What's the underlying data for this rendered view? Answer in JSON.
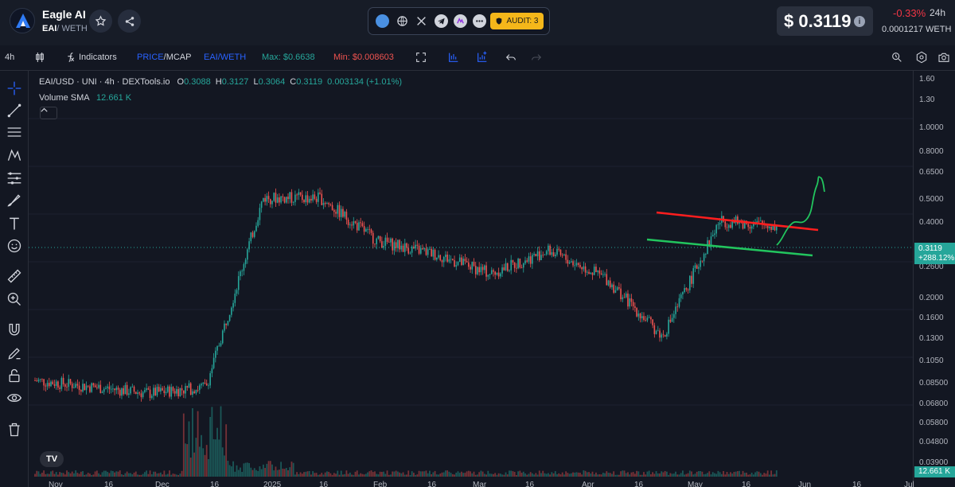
{
  "header": {
    "app_title": "Eagle AI",
    "pair_base": "EAI",
    "pair_quote": "/ WETH",
    "audit_label": "AUDIT: 3",
    "price": "$ 0.3119",
    "change": "-0.33%",
    "period": "24h",
    "weth_price": "0.0001217  WETH"
  },
  "toolbar": {
    "interval": "4h",
    "indicators": "Indicators",
    "price_label": "PRICE",
    "slash": "/",
    "mcap_label": "MCAP",
    "pair": "EAI/WETH",
    "max": "Max: $0.6638",
    "min": "Min: $0.008603"
  },
  "legend": {
    "symbol": "EAI/USD · UNI · 4h · DEXTools.io",
    "o_label": "O",
    "o": "0.3088",
    "h_label": "H",
    "h": "0.3127",
    "l_label": "L",
    "l": "0.3064",
    "c_label": "C",
    "c": "0.3119",
    "change": "0.003134 (+1.01%)",
    "volume_label": "Volume SMA",
    "volume_value": "12.661 K"
  },
  "price_axis": {
    "ticks": [
      "1.60",
      "1.30",
      "1.0000",
      "0.8000",
      "0.6500",
      "0.5000",
      "0.4000",
      "0.3119",
      "0.2600",
      "0.2000",
      "0.1600",
      "0.1300",
      "0.1050",
      "0.08500",
      "0.06800",
      "0.05800",
      "0.04800",
      "0.03900"
    ],
    "price_label": "0.3119",
    "price_change_label": "+288.12%",
    "volume_label": "12.661 K"
  },
  "time_axis": {
    "ticks": [
      "Nov",
      "16",
      "Dec",
      "16",
      "2025",
      "16",
      "Feb",
      "16",
      "Mar",
      "16",
      "Apr",
      "16",
      "May",
      "16",
      "Jun",
      "16",
      "Jul"
    ]
  },
  "colors": {
    "up": "#26a69a",
    "down": "#ef5350",
    "accent": "#2962ff",
    "resistance_line": "#ff1e1e",
    "support_line": "#22c55e",
    "projection": "#22c55e",
    "audit_badge": "#f5b71a"
  },
  "chart_data": {
    "type": "line",
    "title": "EAI/USD · UNI · 4h · DEXTools.io",
    "scale": "log",
    "ylim": [
      0.039,
      1.6
    ],
    "x": [
      "Nov",
      "Nov 16",
      "Dec",
      "Dec 16",
      "2025",
      "Jan 16",
      "Feb",
      "Feb 16",
      "Mar",
      "Mar 16",
      "Apr",
      "Apr 16",
      "May",
      "May 16"
    ],
    "series": [
      {
        "values": [
          0.085,
          0.08,
          0.075,
          0.08,
          0.5,
          0.5,
          0.33,
          0.29,
          0.24,
          0.3,
          0.23,
          0.13,
          0.4,
          0.38
        ]
      }
    ],
    "last": 0.3119,
    "annotations": [
      "0.3119",
      "+288.12%"
    ]
  }
}
